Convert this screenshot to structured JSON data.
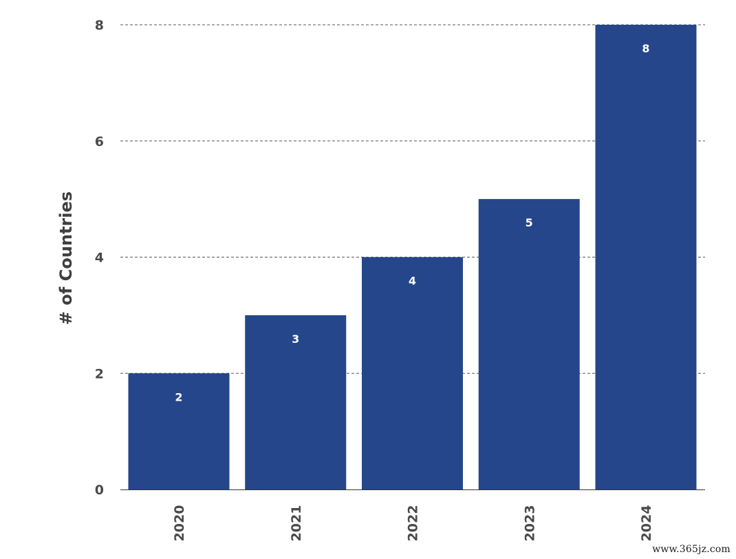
{
  "chart_data": {
    "type": "bar",
    "categories": [
      "2020",
      "2021",
      "2022",
      "2023",
      "2024"
    ],
    "values": [
      2,
      3,
      4,
      5,
      8
    ],
    "data_labels": [
      "2",
      "3",
      "4",
      "5",
      "8"
    ],
    "ylabel": "# of Countries",
    "xlabel": "",
    "ylim": [
      0,
      8
    ],
    "yticks": [
      0,
      2,
      4,
      6,
      8
    ],
    "grid": "horizontal dashed",
    "bar_color": "#25468A",
    "legend": "none"
  },
  "watermark": "www.365jz.com"
}
